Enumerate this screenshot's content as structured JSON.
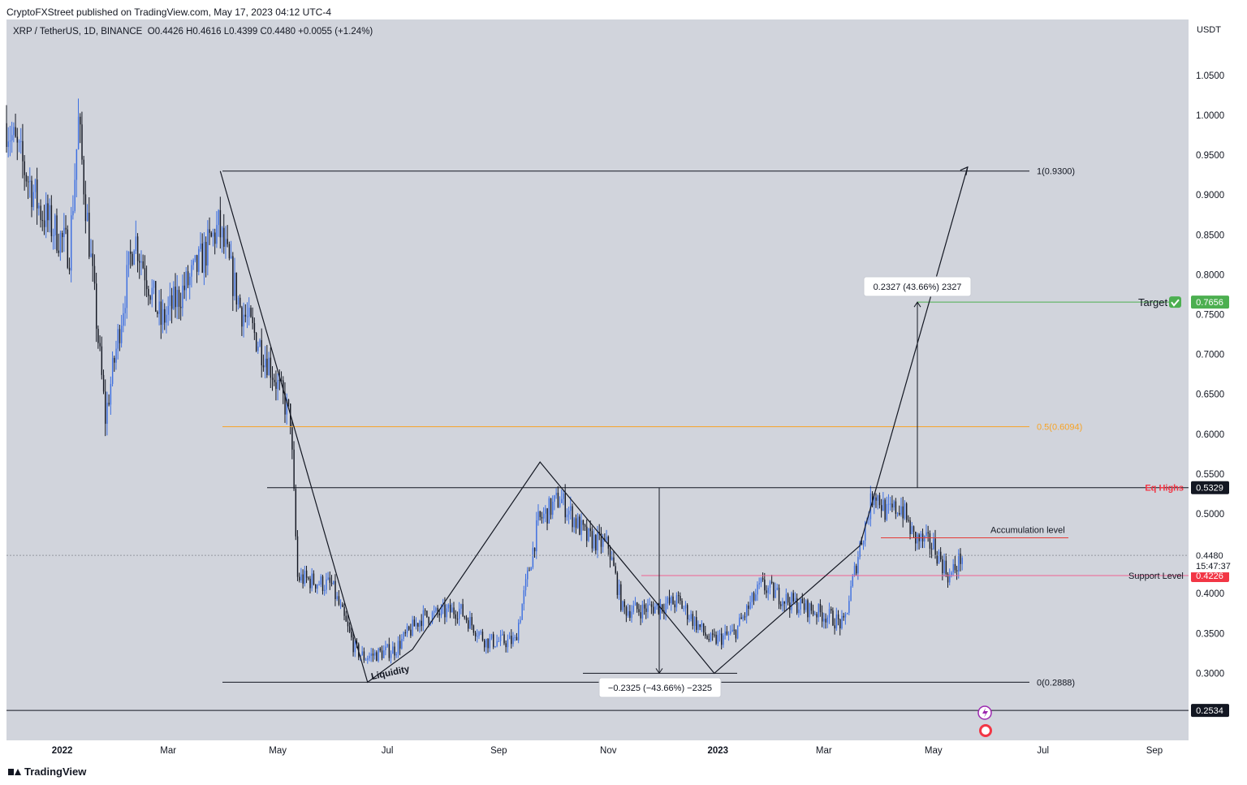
{
  "header": {
    "published": "CryptoFXStreet published on TradingView.com, May 17, 2023 04:12 UTC-4",
    "symbol": "XRP / TetherUS, 1D, BINANCE",
    "ohlc": "O0.4426 H0.4616 L0.4399 C0.4480 +0.0055 (+1.24%)"
  },
  "footer": {
    "logo": "TradingView"
  },
  "chart_data": {
    "type": "candlestick",
    "y_unit": "USDT",
    "ylim": [
      0.2,
      1.1
    ],
    "y_ticks": [
      "1.0500",
      "1.0000",
      "0.9500",
      "0.9000",
      "0.8500",
      "0.8000",
      "0.7500",
      "0.7000",
      "0.6500",
      "0.6000",
      "0.5500",
      "0.5000",
      "0.4000",
      "0.3500",
      "0.3000"
    ],
    "x_ticks": [
      "2022",
      "Mar",
      "May",
      "Jul",
      "Sep",
      "Nov",
      "2023",
      "Mar",
      "May",
      "Jul",
      "Sep"
    ],
    "x_range": [
      "2021-12-01",
      "2023-09-20"
    ],
    "price_path": [
      [
        "2021-12-01",
        0.99
      ],
      [
        "2021-12-20",
        0.88
      ],
      [
        "2022-01-05",
        0.83
      ],
      [
        "2022-01-10",
        0.99
      ],
      [
        "2022-01-25",
        0.62
      ],
      [
        "2022-02-10",
        0.85
      ],
      [
        "2022-02-25",
        0.74
      ],
      [
        "2022-03-15",
        0.8
      ],
      [
        "2022-03-29",
        0.86
      ],
      [
        "2022-04-10",
        0.76
      ],
      [
        "2022-04-26",
        0.69
      ],
      [
        "2022-05-08",
        0.62
      ],
      [
        "2022-05-12",
        0.42
      ],
      [
        "2022-05-31",
        0.41
      ],
      [
        "2022-06-13",
        0.33
      ],
      [
        "2022-06-18",
        0.32
      ],
      [
        "2022-07-05",
        0.33
      ],
      [
        "2022-07-20",
        0.37
      ],
      [
        "2022-08-10",
        0.38
      ],
      [
        "2022-08-25",
        0.34
      ],
      [
        "2022-09-10",
        0.34
      ],
      [
        "2022-09-23",
        0.49
      ],
      [
        "2022-10-05",
        0.52
      ],
      [
        "2022-10-20",
        0.47
      ],
      [
        "2022-11-01",
        0.46
      ],
      [
        "2022-11-09",
        0.38
      ],
      [
        "2022-11-20",
        0.38
      ],
      [
        "2022-12-10",
        0.39
      ],
      [
        "2022-12-28",
        0.34
      ],
      [
        "2023-01-10",
        0.35
      ],
      [
        "2023-01-25",
        0.41
      ],
      [
        "2023-02-10",
        0.39
      ],
      [
        "2023-03-05",
        0.37
      ],
      [
        "2023-03-12",
        0.36
      ],
      [
        "2023-03-21",
        0.46
      ],
      [
        "2023-03-29",
        0.53
      ],
      [
        "2023-04-05",
        0.5
      ],
      [
        "2023-04-13",
        0.51
      ],
      [
        "2023-04-20",
        0.47
      ],
      [
        "2023-05-01",
        0.46
      ],
      [
        "2023-05-10",
        0.42
      ],
      [
        "2023-05-17",
        0.448
      ]
    ],
    "current_price": "0.4480",
    "countdown": "15:47:37",
    "levels": [
      {
        "name": "fib_1",
        "label": "1(0.9300)",
        "value": 0.93,
        "color": "#131722"
      },
      {
        "name": "fib_05",
        "label": "0.5(0.6094)",
        "value": 0.6094,
        "color": "#f7a325"
      },
      {
        "name": "fib_0",
        "label": "0(0.2888)",
        "value": 0.2888,
        "color": "#131722"
      },
      {
        "name": "eq_highs",
        "label": "Eq Highs",
        "value": 0.5329,
        "tag": "0.5329",
        "color": "#131722",
        "text_color": "#f23645"
      },
      {
        "name": "target",
        "label": "Target",
        "value": 0.7656,
        "tag": "0.7656",
        "color": "#4caf50"
      },
      {
        "name": "accumulation",
        "label": "Accumulation level",
        "value": 0.47,
        "color": "#e53935"
      },
      {
        "name": "support",
        "label": "Support Level",
        "value": 0.4226,
        "tag": "0.4226",
        "color": "#f06292"
      },
      {
        "name": "bottom",
        "value": 0.2534,
        "tag": "0.2534",
        "color": "#131722"
      }
    ],
    "annotations": {
      "liquidity": "Liquidity",
      "measure_up": "0.2327 (43.66%) 2327",
      "measure_down": "−0.2325 (−43.66%) −2325"
    },
    "pattern_points": [
      [
        "2022-03-30",
        0.93
      ],
      [
        "2022-06-20",
        0.2888
      ],
      [
        "2022-07-15",
        0.33
      ],
      [
        "2022-09-24",
        0.565
      ],
      [
        "2022-11-20",
        0.41
      ],
      [
        "2022-12-30",
        0.3
      ],
      [
        "2023-03-21",
        0.46
      ],
      [
        "2023-05-20",
        0.935
      ]
    ]
  }
}
